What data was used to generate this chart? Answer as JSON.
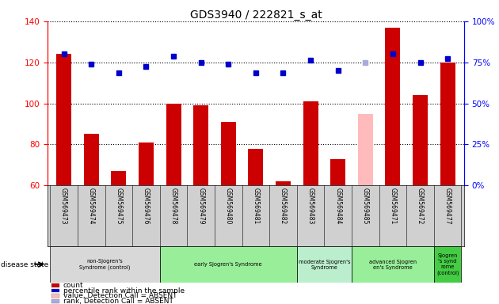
{
  "title": "GDS3940 / 222821_s_at",
  "samples": [
    "GSM569473",
    "GSM569474",
    "GSM569475",
    "GSM569476",
    "GSM569478",
    "GSM569479",
    "GSM569480",
    "GSM569481",
    "GSM569482",
    "GSM569483",
    "GSM569484",
    "GSM569485",
    "GSM569471",
    "GSM569472",
    "GSM569477"
  ],
  "counts": [
    124,
    85,
    67,
    81,
    100,
    99,
    91,
    78,
    62,
    101,
    73,
    null,
    137,
    104,
    120
  ],
  "absent_value": [
    null,
    null,
    null,
    null,
    null,
    null,
    null,
    null,
    null,
    null,
    null,
    95,
    null,
    null,
    null
  ],
  "ranks": [
    124,
    119,
    115,
    118,
    123,
    120,
    119,
    115,
    115,
    121,
    116,
    null,
    124,
    120,
    122
  ],
  "absent_rank": [
    null,
    null,
    null,
    null,
    null,
    null,
    null,
    null,
    null,
    null,
    null,
    120,
    null,
    null,
    null
  ],
  "bar_color": "#cc0000",
  "absent_bar_color": "#ffbbbb",
  "rank_color": "#0000cc",
  "absent_rank_color": "#aaaadd",
  "ylim_left": [
    60,
    140
  ],
  "ylim_right": [
    0,
    100
  ],
  "yticks_left": [
    60,
    80,
    100,
    120,
    140
  ],
  "yticks_right": [
    0,
    25,
    50,
    75,
    100
  ],
  "groups": [
    {
      "label": "non-Sjogren's\nSyndrome (control)",
      "start": 0,
      "end": 3,
      "color": "#d8d8d8"
    },
    {
      "label": "early Sjogren's Syndrome",
      "start": 4,
      "end": 8,
      "color": "#99ee99"
    },
    {
      "label": "moderate Sjogren's\nSyndrome",
      "start": 9,
      "end": 10,
      "color": "#bbeebb"
    },
    {
      "label": "advanced Sjogren's\nen's Syndrome",
      "start": 11,
      "end": 13,
      "color": "#99ee99"
    },
    {
      "label": "Sjogren\n's synd\nrome\n(control)",
      "start": 14,
      "end": 14,
      "color": "#55dd55"
    }
  ],
  "bar_width": 0.55,
  "title_fontsize": 10
}
